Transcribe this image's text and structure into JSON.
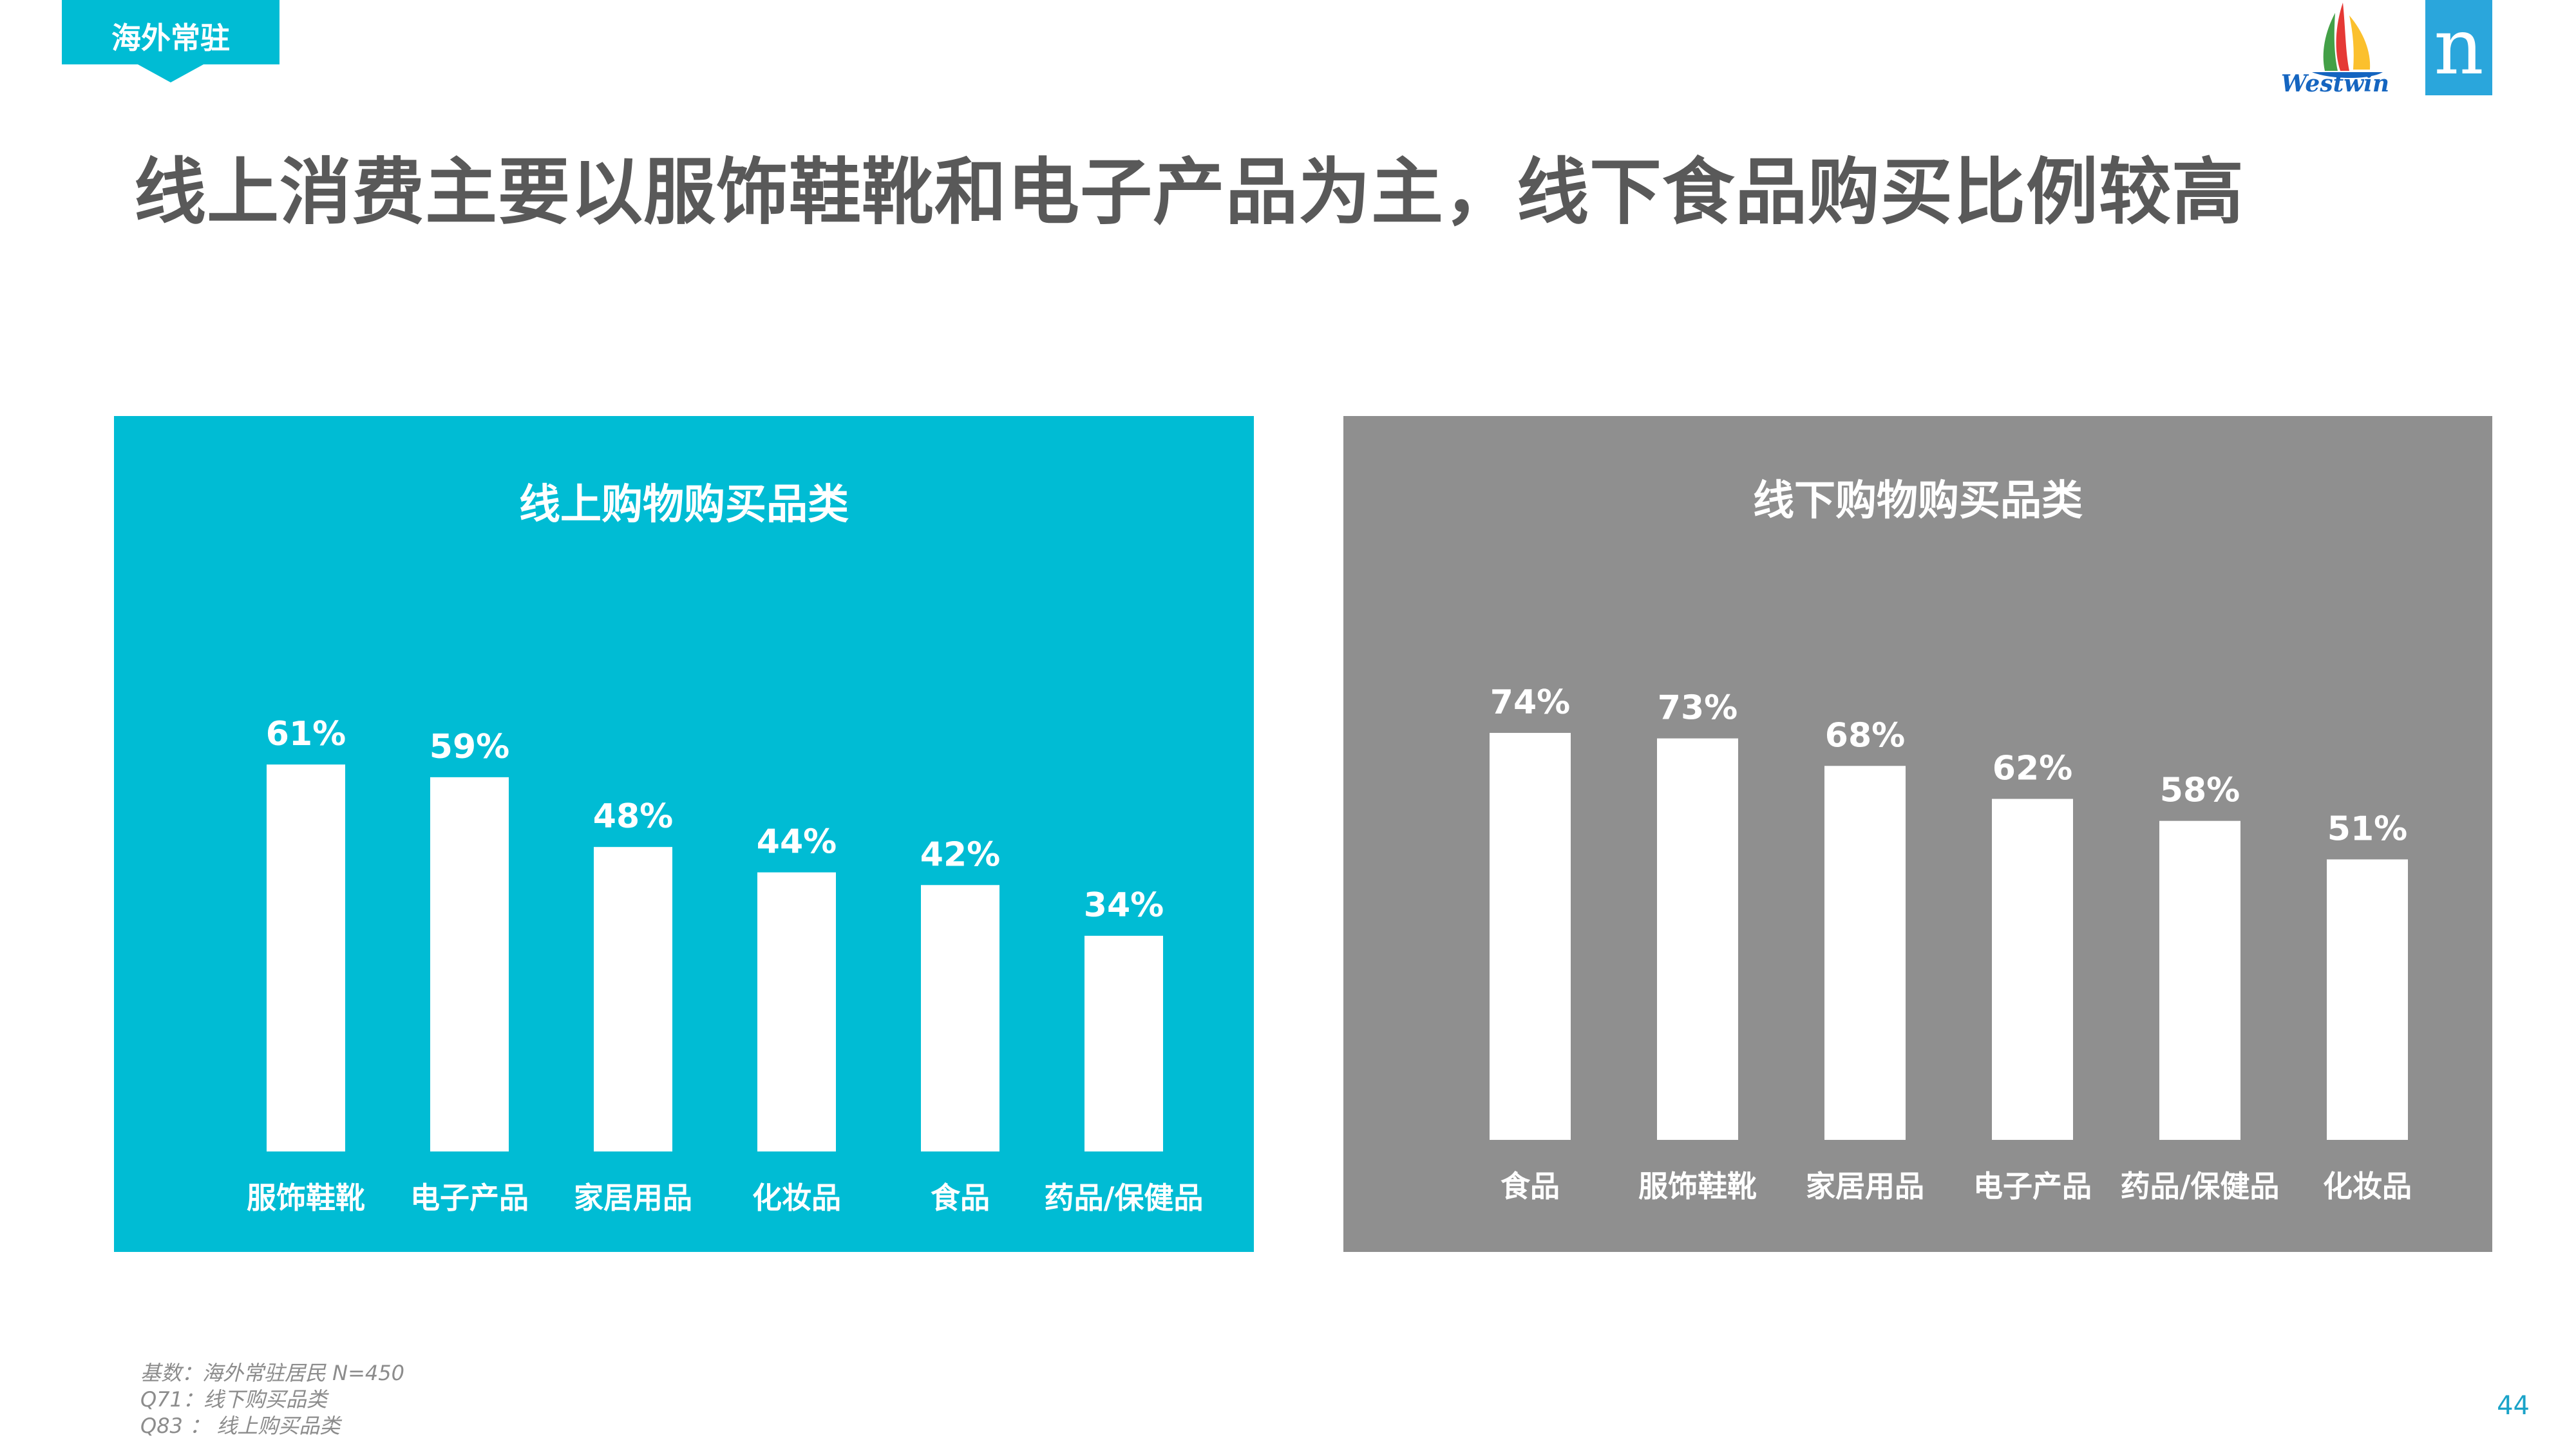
{
  "header": {
    "tag": "海外常驻",
    "title": "线上消费主要以服饰鞋靴和电子产品为主，线下食品购买比例较高",
    "logo_text": "Westwin",
    "brand_letter": "n"
  },
  "colors": {
    "accent": "#00bcd4",
    "gray_panel": "#8f8f8f",
    "title_text": "#595959",
    "bars": "#ffffff"
  },
  "chart_data": [
    {
      "type": "bar",
      "title": "线上购物购买品类",
      "categories": [
        "服饰鞋靴",
        "电子产品",
        "家居用品",
        "化妆品",
        "食品",
        "药品/保健品"
      ],
      "values": [
        61,
        59,
        48,
        44,
        42,
        34
      ],
      "value_labels": [
        "61%",
        "59%",
        "48%",
        "44%",
        "42%",
        "34%"
      ],
      "unit": "%",
      "ylim": [
        0,
        100
      ],
      "grid": false,
      "legend": "none",
      "panel_color": "#00bcd4"
    },
    {
      "type": "bar",
      "title": "线下购物购买品类",
      "categories": [
        "食品",
        "服饰鞋靴",
        "家居用品",
        "电子产品",
        "药品/保健品",
        "化妆品"
      ],
      "values": [
        74,
        73,
        68,
        62,
        58,
        51
      ],
      "value_labels": [
        "74%",
        "73%",
        "68%",
        "62%",
        "58%",
        "51%"
      ],
      "unit": "%",
      "ylim": [
        0,
        100
      ],
      "grid": false,
      "legend": "none",
      "panel_color": "#8f8f8f"
    }
  ],
  "footnotes": [
    "基数：海外常驻居民 N=450",
    "Q71：线下购买品类",
    "Q83 ： 线上购买品类"
  ],
  "page_number": "44"
}
